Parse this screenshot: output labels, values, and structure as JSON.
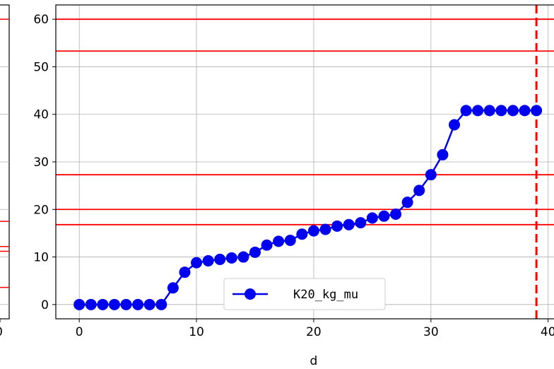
{
  "chart_data": {
    "type": "line",
    "xlabel": "d",
    "xlim": [
      -2,
      40.5
    ],
    "ylim": [
      -3,
      63
    ],
    "xticks": [
      0,
      10,
      20,
      30,
      40
    ],
    "xtick_labels": [
      "0",
      "10",
      "20",
      "30",
      "40"
    ],
    "yticks": [
      0,
      10,
      20,
      30,
      40,
      50,
      60
    ],
    "ytick_labels": [
      "0",
      "10",
      "20",
      "30",
      "40",
      "50",
      "60"
    ],
    "grid": true,
    "legend_position": "bottom-center",
    "series": [
      {
        "name": "K20_kg_mu",
        "color": "#0000ee",
        "marker": "circle",
        "x": [
          0,
          1,
          2,
          3,
          4,
          5,
          6,
          7,
          8,
          9,
          10,
          11,
          12,
          13,
          14,
          15,
          16,
          17,
          18,
          19,
          20,
          21,
          22,
          23,
          24,
          25,
          26,
          27,
          28,
          29,
          30,
          31,
          32,
          33,
          34,
          35,
          36,
          37,
          38,
          39
        ],
        "y": [
          0,
          0,
          0,
          0,
          0,
          0,
          0,
          0,
          3.5,
          6.8,
          8.8,
          9.2,
          9.5,
          9.8,
          10,
          11,
          12.5,
          13.3,
          13.5,
          14.8,
          15.5,
          15.8,
          16.5,
          16.8,
          17.2,
          18.2,
          18.6,
          19,
          21.5,
          24,
          27.3,
          31.5,
          37.8,
          40.8,
          40.8,
          40.8,
          40.8,
          40.8,
          40.8,
          40.8
        ]
      }
    ],
    "hlines": [
      {
        "y": 60,
        "color": "#ff0000",
        "style": "solid"
      },
      {
        "y": 53.3,
        "color": "#ff0000",
        "style": "solid"
      },
      {
        "y": 27.3,
        "color": "#ff0000",
        "style": "solid"
      },
      {
        "y": 20,
        "color": "#ff0000",
        "style": "solid"
      },
      {
        "y": 16.8,
        "color": "#ff0000",
        "style": "solid"
      }
    ],
    "vlines": [
      {
        "x": 39,
        "color": "#ff0000",
        "style": "dashed"
      }
    ],
    "left_partial_panel": {
      "xtick_label": "0",
      "hline_ylevels": [
        60,
        17.5,
        12.2,
        11.2,
        3.6
      ]
    }
  }
}
